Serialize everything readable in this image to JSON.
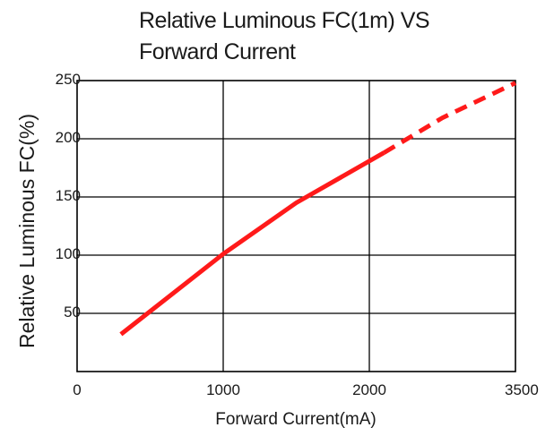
{
  "chart_data": {
    "type": "line",
    "title": [
      "Relative Luminous FC(1m) VS",
      "Forward Current"
    ],
    "xlabel": "Forward Current(mA)",
    "ylabel": "Relative Luminous FC(%)",
    "x_ticks": [
      "0",
      "1000",
      "2000",
      "3500"
    ],
    "y_ticks": [
      "50",
      "100",
      "150",
      "200",
      "250"
    ],
    "grid": true,
    "line_color": "#ff1a1a",
    "series": [
      {
        "style": "solid",
        "points": [
          {
            "x": 300,
            "y": 32
          },
          {
            "x": 1000,
            "y": 101
          },
          {
            "x": 1500,
            "y": 145
          },
          {
            "x": 2100,
            "y": 188
          }
        ]
      },
      {
        "style": "dashed",
        "points": [
          {
            "x": 2100,
            "y": 188
          },
          {
            "x": 2500,
            "y": 218
          },
          {
            "x": 3000,
            "y": 248
          }
        ]
      }
    ]
  }
}
